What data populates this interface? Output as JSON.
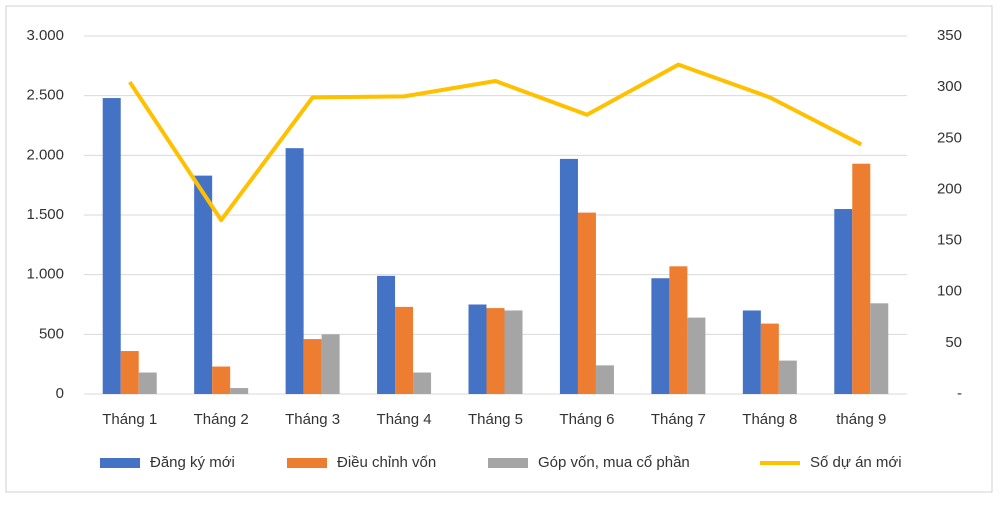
{
  "chart_data": {
    "type": "bar",
    "categories": [
      "Tháng 1",
      "Tháng 2",
      "Tháng 3",
      "Tháng 4",
      "Tháng 5",
      "Tháng 6",
      "Tháng 7",
      "Tháng 8",
      "tháng 9"
    ],
    "series": [
      {
        "name": "Đăng ký mới",
        "color": "#4472c4",
        "values": [
          2480,
          1830,
          2060,
          990,
          750,
          1970,
          970,
          700,
          1550
        ]
      },
      {
        "name": "Điều chỉnh vốn",
        "color": "#ed7d31",
        "values": [
          360,
          230,
          460,
          730,
          720,
          1520,
          1070,
          590,
          1930
        ]
      },
      {
        "name": "Góp vốn, mua cổ phần",
        "color": "#a5a5a5",
        "values": [
          180,
          50,
          500,
          180,
          700,
          240,
          640,
          280,
          760
        ]
      },
      {
        "name": "Số dự án mới",
        "color": "#ffc000",
        "type": "line",
        "axis": "y2",
        "values": [
          305,
          170,
          290,
          291,
          306,
          273,
          322,
          290,
          244
        ]
      }
    ],
    "ylim": [
      0,
      3000
    ],
    "yticks": [
      0,
      500,
      {
        "value": 1000,
        "label": "1.000"
      },
      {
        "value": 1500,
        "label": "1.500"
      },
      {
        "value": 2000,
        "label": "2.000"
      },
      {
        "value": 2500,
        "label": "2.500"
      },
      {
        "value": 3000,
        "label": "3.000"
      }
    ],
    "y2lim": [
      0,
      350
    ],
    "y2ticks": [
      {
        "value": 0,
        "label": "-"
      },
      50,
      100,
      150,
      200,
      250,
      300,
      350
    ],
    "grid": true,
    "legend": "bottom"
  }
}
